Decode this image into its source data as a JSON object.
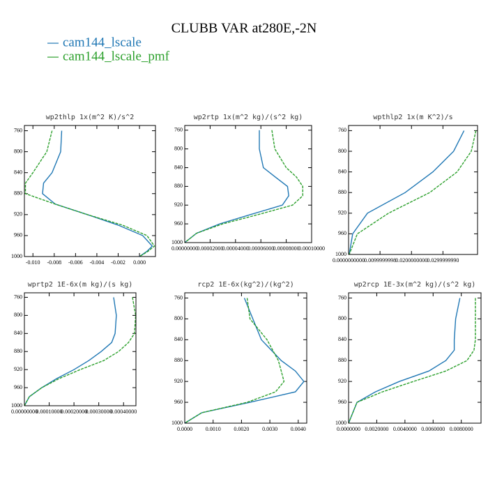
{
  "title": "CLUBB VAR at280E,-2N",
  "chart_data": [
    {
      "type": "line",
      "title": "wp2thlp  1x(m^2 K)/s^2",
      "y_reversed": true,
      "ylim": [
        750,
        1000
      ],
      "yticks": [
        760,
        800,
        840,
        880,
        920,
        960,
        1000
      ],
      "xlim": [
        -0.0108,
        0.0015
      ],
      "xticks": [
        {
          "value": -0.01,
          "label": "-0.010"
        },
        {
          "value": -0.008,
          "label": "-0.008"
        },
        {
          "value": -0.006,
          "label": "-0.006"
        },
        {
          "value": -0.004,
          "label": "-0.004"
        },
        {
          "value": -0.002,
          "label": "-0.002"
        },
        {
          "value": 0,
          "label": "0.000"
        }
      ],
      "levels": [
        760,
        800,
        840,
        860,
        880,
        900,
        920,
        940,
        960,
        980,
        990,
        1000
      ],
      "series": [
        {
          "name": "cam144_lscale",
          "color": "#1f77b4",
          "dashed": false,
          "values": [
            -0.0073,
            -0.0074,
            -0.0082,
            -0.009,
            -0.0091,
            -0.0079,
            -0.0049,
            -0.002,
            0.0003,
            0.0012,
            0.0007,
            0
          ]
        },
        {
          "name": "cam144_lscale_pmf",
          "color": "#2ca02c",
          "dashed": true,
          "values": [
            -0.0082,
            -0.0087,
            -0.01,
            -0.0107,
            -0.0107,
            -0.0079,
            -0.0049,
            -0.0016,
            0.0007,
            0.0014,
            0.0008,
            0
          ]
        }
      ]
    },
    {
      "type": "line",
      "title": "wp2rtp  1x(m^2 kg)/(s^2 kg)",
      "y_reversed": true,
      "ylim": [
        750,
        1000
      ],
      "yticks": [
        760,
        800,
        840,
        880,
        920,
        960,
        1000
      ],
      "xlim": [
        0,
        0.0001
      ],
      "xticks": [
        {
          "value": 0,
          "label": "0.00000000"
        },
        {
          "value": 2e-05,
          "label": "0.00002000"
        },
        {
          "value": 4e-05,
          "label": "0.00004000"
        },
        {
          "value": 6e-05,
          "label": "0.00006000"
        },
        {
          "value": 8e-05,
          "label": "0.00008000"
        },
        {
          "value": 0.0001,
          "label": "0.00010000"
        }
      ],
      "levels": [
        760,
        800,
        840,
        860,
        880,
        900,
        920,
        940,
        960,
        980,
        1000
      ],
      "series": [
        {
          "name": "cam144_lscale",
          "color": "#1f77b4",
          "dashed": false,
          "values": [
            5.88e-05,
            5.88e-05,
            6.2e-05,
            7.14e-05,
            8.1e-05,
            8.2e-05,
            7.7e-05,
            5.2e-05,
            2.75e-05,
            9.3e-06,
            0
          ]
        },
        {
          "name": "cam144_lscale_pmf",
          "color": "#2ca02c",
          "dashed": true,
          "values": [
            6.87e-05,
            7.1e-05,
            8e-05,
            8.8e-05,
            9.3e-05,
            9.3e-05,
            8.5e-05,
            5.8e-05,
            3e-05,
            9.3e-06,
            0
          ]
        }
      ]
    },
    {
      "type": "line",
      "title": "wpthlp2  1x(m K^2)/s",
      "y_reversed": true,
      "ylim": [
        750,
        1000
      ],
      "yticks": [
        760,
        800,
        840,
        880,
        920,
        960,
        1000
      ],
      "xlim": [
        0,
        0.041
      ],
      "xticks": [
        {
          "value": 0,
          "label": "0.0000000000"
        },
        {
          "value": 0.01,
          "label": "0.0099999998"
        },
        {
          "value": 0.02,
          "label": "0.0200000000"
        },
        {
          "value": 0.03,
          "label": "0.0299999990"
        }
      ],
      "levels": [
        760,
        800,
        840,
        880,
        920,
        960,
        1000
      ],
      "series": [
        {
          "name": "cam144_lscale",
          "color": "#1f77b4",
          "dashed": false,
          "values": [
            0.0367,
            0.0334,
            0.0268,
            0.018,
            0.006,
            0.0013,
            0.0002
          ]
        },
        {
          "name": "cam144_lscale_pmf",
          "color": "#2ca02c",
          "dashed": true,
          "values": [
            0.0405,
            0.039,
            0.0345,
            0.0258,
            0.0127,
            0.0028,
            0.0002
          ]
        }
      ]
    },
    {
      "type": "line",
      "title": "wprtp2  1E-6x(m kg)/(s kg)",
      "y_reversed": true,
      "ylim": [
        750,
        1000
      ],
      "yticks": [
        760,
        800,
        840,
        880,
        920,
        960,
        1000
      ],
      "xlim": [
        0,
        0.00045
      ],
      "xticks": [
        {
          "value": 0,
          "label": "0.00000000"
        },
        {
          "value": 0.0001,
          "label": "0.00010000"
        },
        {
          "value": 0.0002,
          "label": "0.00020000"
        },
        {
          "value": 0.0003,
          "label": "0.00030000"
        },
        {
          "value": 0.0004,
          "label": "0.00040000"
        }
      ],
      "levels": [
        760,
        800,
        840,
        860,
        880,
        900,
        920,
        940,
        960,
        980,
        1000
      ],
      "series": [
        {
          "name": "cam144_lscale",
          "color": "#1f77b4",
          "dashed": false,
          "values": [
            0.00036,
            0.000371,
            0.000366,
            0.000352,
            0.00031,
            0.00026,
            0.0002,
            0.00013,
            7e-05,
            2e-05,
            0
          ]
        },
        {
          "name": "cam144_lscale_pmf",
          "color": "#2ca02c",
          "dashed": true,
          "values": [
            0.000436,
            0.000449,
            0.000444,
            0.00042,
            0.00038,
            0.00032,
            0.000225,
            0.00014,
            7e-05,
            2e-05,
            0
          ]
        }
      ]
    },
    {
      "type": "line",
      "title": "rcp2  1E-6x(kg^2)/(kg^2)",
      "y_reversed": true,
      "ylim": [
        750,
        1000
      ],
      "yticks": [
        760,
        800,
        840,
        880,
        920,
        960,
        1000
      ],
      "xlim": [
        0,
        0.0043
      ],
      "xticks": [
        {
          "value": 0,
          "label": "0.0000"
        },
        {
          "value": 0.001,
          "label": "0.0010"
        },
        {
          "value": 0.002,
          "label": "0.0020"
        },
        {
          "value": 0.003,
          "label": "0.0030"
        },
        {
          "value": 0.004,
          "label": "0.0040"
        }
      ],
      "levels": [
        760,
        800,
        840,
        880,
        900,
        920,
        940,
        960,
        980,
        1000
      ],
      "series": [
        {
          "name": "cam144_lscale",
          "color": "#1f77b4",
          "dashed": false,
          "values": [
            0.0021,
            0.0024,
            0.0027,
            0.0034,
            0.0039,
            0.0042,
            0.0039,
            0.0023,
            0.0006,
            0
          ]
        },
        {
          "name": "cam144_lscale_pmf",
          "color": "#2ca02c",
          "dashed": true,
          "values": [
            0.0022,
            0.0023,
            0.0029,
            0.0033,
            0.0034,
            0.0035,
            0.0032,
            0.0022,
            0.0006,
            0
          ]
        }
      ]
    },
    {
      "type": "line",
      "title": "wp2rcp  1E-3x(m^2 kg)/(s^2 kg)",
      "y_reversed": true,
      "ylim": [
        750,
        1000
      ],
      "yticks": [
        760,
        800,
        840,
        880,
        920,
        960,
        1000
      ],
      "xlim": [
        0,
        0.0094
      ],
      "xticks": [
        {
          "value": 0,
          "label": "0.0000000"
        },
        {
          "value": 0.002,
          "label": "0.0020000"
        },
        {
          "value": 0.004,
          "label": "0.0040000"
        },
        {
          "value": 0.006,
          "label": "0.0060000"
        },
        {
          "value": 0.008,
          "label": "0.0080000"
        }
      ],
      "levels": [
        760,
        800,
        840,
        860,
        880,
        900,
        920,
        940,
        960,
        1000
      ],
      "series": [
        {
          "name": "cam144_lscale",
          "color": "#1f77b4",
          "dashed": false,
          "values": [
            0.0079,
            0.0076,
            0.0075,
            0.0075,
            0.0069,
            0.0057,
            0.0036,
            0.0019,
            0.0006,
            0
          ]
        },
        {
          "name": "cam144_lscale_pmf",
          "color": "#2ca02c",
          "dashed": true,
          "values": [
            0.009,
            0.009,
            0.009,
            0.0089,
            0.0084,
            0.0069,
            0.0046,
            0.0024,
            0.0006,
            0
          ]
        }
      ]
    }
  ]
}
